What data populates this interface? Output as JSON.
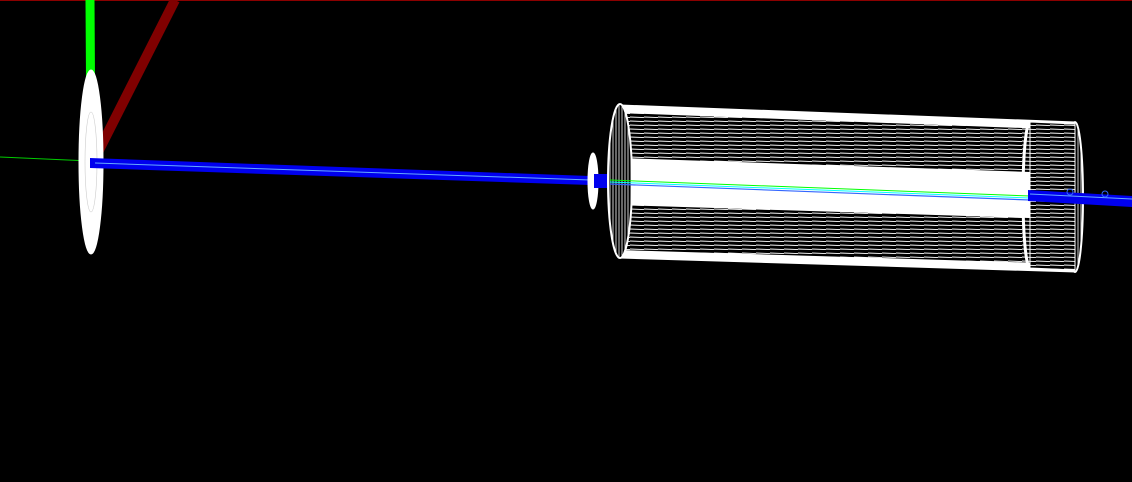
{
  "viewport": {
    "background": "#000000",
    "frame_color": "#8b0000"
  },
  "axes": {
    "x_color": "#0000ff",
    "y_color": "#00ff00",
    "z_color": "#800000"
  },
  "geometry": {
    "wire_color": "#ffffff",
    "beam_color": "#0000ff",
    "trajectory_colors": [
      "#00ff00",
      "#00ffff"
    ]
  }
}
